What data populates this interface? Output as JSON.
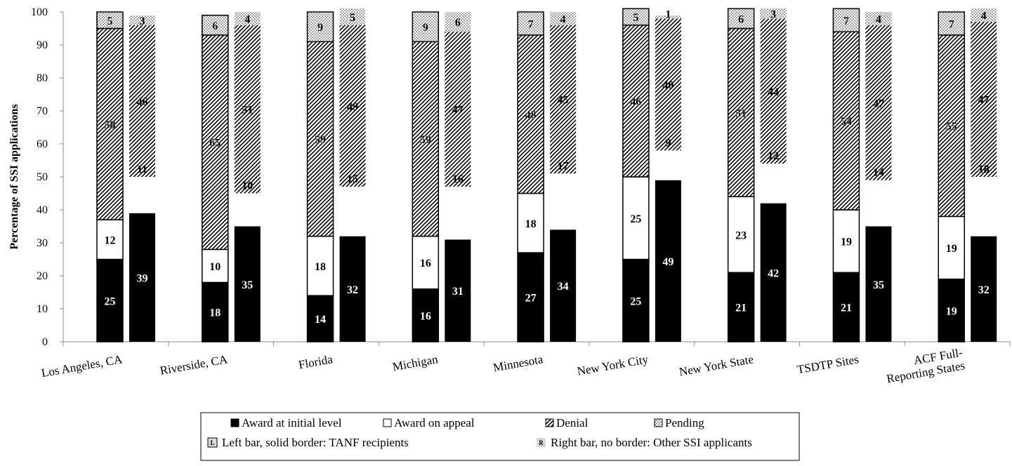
{
  "chart_data": {
    "type": "bar",
    "stacked": true,
    "ylabel": "Percentage of SSI applications",
    "ylim": [
      0,
      100
    ],
    "ytick_step": 10,
    "gridlines": false,
    "legend_placement": "bottom-center",
    "categories": [
      "Los Angeles, CA",
      "Riverside, CA",
      "Florida",
      "Michigan",
      "Minnesota",
      "New York City",
      "New York State",
      "TSDTP Sites",
      "ACF Full-Reporting States"
    ],
    "category_label_lines": [
      [
        "Los Angeles, CA"
      ],
      [
        "Riverside, CA"
      ],
      [
        "Florida"
      ],
      [
        "Michigan"
      ],
      [
        "Minnesota"
      ],
      [
        "New York City"
      ],
      [
        "New York State"
      ],
      [
        "TSDTP Sites"
      ],
      [
        "ACF Full-",
        "Reporting States"
      ]
    ],
    "groups": [
      {
        "name": "TANF recipients",
        "bar": "left",
        "border": "solid"
      },
      {
        "name": "Other SSI applicants",
        "bar": "right",
        "border": "none"
      }
    ],
    "series": [
      {
        "name": "Award at initial level",
        "tanf": [
          25,
          18,
          14,
          16,
          27,
          25,
          21,
          21,
          19
        ],
        "other": [
          39,
          35,
          32,
          31,
          34,
          49,
          42,
          35,
          32
        ]
      },
      {
        "name": "Award on appeal",
        "tanf": [
          12,
          10,
          18,
          16,
          18,
          25,
          23,
          19,
          19
        ],
        "other": [
          11,
          10,
          15,
          16,
          17,
          9,
          12,
          14,
          18
        ]
      },
      {
        "name": "Denial",
        "tanf": [
          58,
          65,
          59,
          59,
          48,
          46,
          51,
          54,
          55
        ],
        "other": [
          46,
          51,
          49,
          47,
          45,
          40,
          44,
          47,
          47
        ]
      },
      {
        "name": "Pending",
        "tanf": [
          5,
          6,
          9,
          9,
          7,
          5,
          6,
          7,
          7
        ],
        "other": [
          3,
          4,
          5,
          6,
          4,
          1,
          3,
          4,
          4
        ]
      }
    ],
    "legend": {
      "series_entries": [
        "Award at initial level",
        "Award on appeal",
        "Denial",
        "Pending"
      ],
      "group_entries": [
        {
          "marker": "L",
          "text": "Left bar, solid border: TANF recipients"
        },
        {
          "marker": "R",
          "text": "Right bar, no border: Other SSI applicants"
        }
      ]
    },
    "colors": {
      "award_initial": "#000000",
      "award_appeal": "#ffffff",
      "denial_hatch": "#000000",
      "pending_dots": "#000000",
      "label_on_dark": "#ffffff",
      "label_on_light": "#000000",
      "legend_group_fill": "#d9d9d9"
    }
  }
}
